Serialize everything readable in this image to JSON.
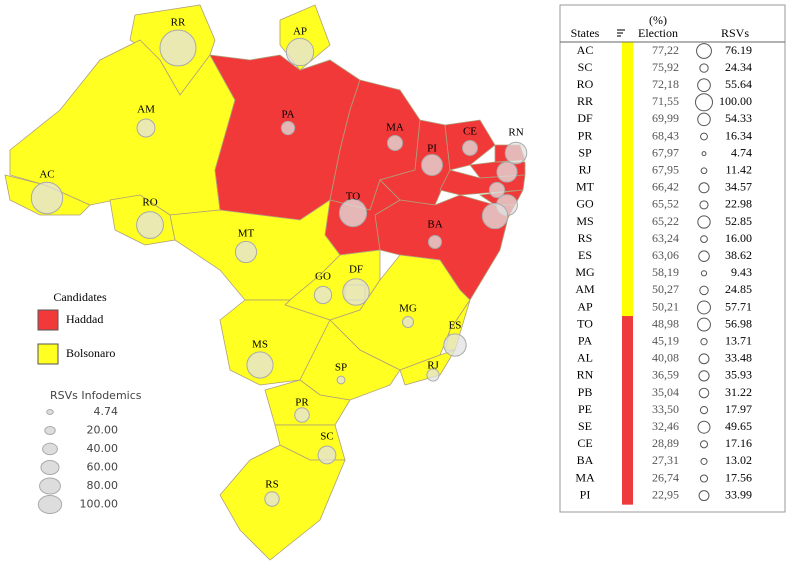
{
  "map": {
    "labels": [
      "RR",
      "AP",
      "AM",
      "PA",
      "MA",
      "CE",
      "RN",
      "PI",
      "AC",
      "TO",
      "RO",
      "MT",
      "BA",
      "GO",
      "DF",
      "MG",
      "ES",
      "MS",
      "SP",
      "RJ",
      "PR",
      "SC",
      "RS"
    ]
  },
  "legend": {
    "title": "Candidates",
    "items": [
      {
        "label": "Haddad",
        "color": "#f2393a"
      },
      {
        "label": "Bolsonaro",
        "color": "#ffff22"
      }
    ]
  },
  "size_legend": {
    "title": "RSVs Infodemics",
    "values": [
      "4.74",
      "20.00",
      "40.00",
      "60.00",
      "80.00",
      "100.00"
    ]
  },
  "table": {
    "header": {
      "states": "States",
      "election_unit": "(%)",
      "election": "Election",
      "rsvs": "RSVs"
    },
    "rows": [
      {
        "state": "AC",
        "election": "77,22",
        "rsv": "76.19",
        "color": "#ffff00"
      },
      {
        "state": "SC",
        "election": "75,92",
        "rsv": "24.34",
        "color": "#ffff00"
      },
      {
        "state": "RO",
        "election": "72,18",
        "rsv": "55.64",
        "color": "#ffff00"
      },
      {
        "state": "RR",
        "election": "71,55",
        "rsv": "100.00",
        "color": "#ffff00"
      },
      {
        "state": "DF",
        "election": "69,99",
        "rsv": "54.33",
        "color": "#ffff00"
      },
      {
        "state": "PR",
        "election": "68,43",
        "rsv": "16.34",
        "color": "#ffff00"
      },
      {
        "state": "SP",
        "election": "67,97",
        "rsv": "4.74",
        "color": "#ffff00"
      },
      {
        "state": "RJ",
        "election": "67,95",
        "rsv": "11.42",
        "color": "#ffff00"
      },
      {
        "state": "MT",
        "election": "66,42",
        "rsv": "34.57",
        "color": "#ffff00"
      },
      {
        "state": "GO",
        "election": "65,52",
        "rsv": "22.98",
        "color": "#ffff00"
      },
      {
        "state": "MS",
        "election": "65,22",
        "rsv": "52.85",
        "color": "#ffff00"
      },
      {
        "state": "RS",
        "election": "63,24",
        "rsv": "16.00",
        "color": "#ffff00"
      },
      {
        "state": "ES",
        "election": "63,06",
        "rsv": "38.62",
        "color": "#ffff00"
      },
      {
        "state": "MG",
        "election": "58,19",
        "rsv": "9.43",
        "color": "#ffff00"
      },
      {
        "state": "AM",
        "election": "50,27",
        "rsv": "24.85",
        "color": "#ffff00"
      },
      {
        "state": "AP",
        "election": "50,21",
        "rsv": "57.71",
        "color": "#ffff00"
      },
      {
        "state": "TO",
        "election": "48,98",
        "rsv": "56.98",
        "color": "#ee3a3d"
      },
      {
        "state": "PA",
        "election": "45,19",
        "rsv": "13.71",
        "color": "#ee3a3d"
      },
      {
        "state": "AL",
        "election": "40,08",
        "rsv": "33.48",
        "color": "#ee3a3d"
      },
      {
        "state": "RN",
        "election": "36,59",
        "rsv": "35.93",
        "color": "#ee3a3d"
      },
      {
        "state": "PB",
        "election": "35,04",
        "rsv": "31.22",
        "color": "#ee3a3d"
      },
      {
        "state": "PE",
        "election": "33,50",
        "rsv": "17.97",
        "color": "#ee3a3d"
      },
      {
        "state": "SE",
        "election": "32,46",
        "rsv": "49.65",
        "color": "#ee3a3d"
      },
      {
        "state": "CE",
        "election": "28,89",
        "rsv": "17.16",
        "color": "#ee3a3d"
      },
      {
        "state": "BA",
        "election": "27,31",
        "rsv": "13.02",
        "color": "#ee3a3d"
      },
      {
        "state": "MA",
        "election": "26,74",
        "rsv": "17.56",
        "color": "#ee3a3d"
      },
      {
        "state": "PI",
        "election": "22,95",
        "rsv": "33.99",
        "color": "#ee3a3d"
      }
    ]
  }
}
